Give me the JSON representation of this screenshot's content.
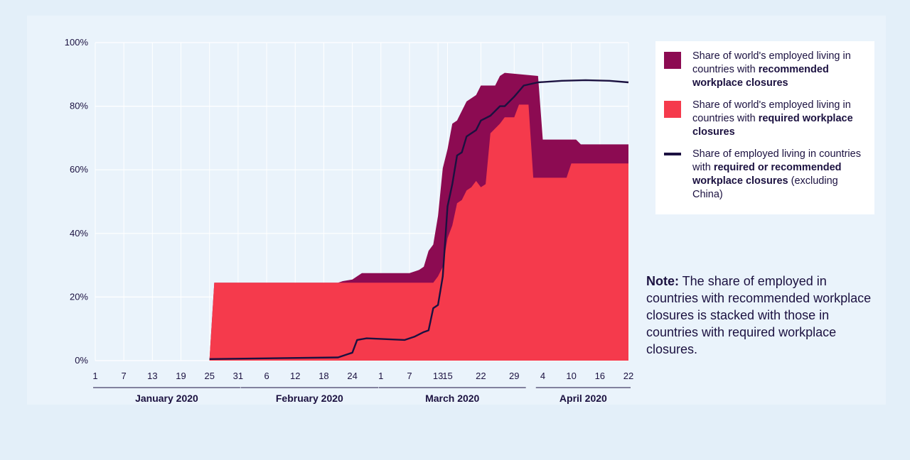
{
  "colors": {
    "page_background": "#e3eff9",
    "panel_background": "#eaf3fb",
    "recommended_closures": "#8c0b52",
    "required_closures": "#f53a4c",
    "combined_line": "#1b1140",
    "grid": "#ffffff"
  },
  "legend": {
    "recommended": {
      "text_plain": "Share of world's employed living in countries with ",
      "text_bold": "recommended workplace closures"
    },
    "required": {
      "text_plain": "Share of world's employed living in countries with ",
      "text_bold": "required workplace closures"
    },
    "combined": {
      "text_plain": "Share of employed living in countries with ",
      "text_bold": "required or recommended workplace closures",
      "text_suffix": " (excluding China)"
    }
  },
  "note": {
    "label": "Note:",
    "text": " The share of employed in countries with recommended workplace closures is stacked with those in countries with required workplace closures."
  },
  "chart_data": {
    "type": "area",
    "x_range": [
      "2020-01-01",
      "2020-04-22"
    ],
    "y_range": [
      0,
      100
    ],
    "y_unit": "%",
    "y_ticks": [
      0,
      20,
      40,
      60,
      80,
      100
    ],
    "y_tick_labels": [
      "0%",
      "20%",
      "40%",
      "60%",
      "80%",
      "100%"
    ],
    "x_ticks": [
      {
        "date": "2020-01-01",
        "label": "1"
      },
      {
        "date": "2020-01-07",
        "label": "7"
      },
      {
        "date": "2020-01-13",
        "label": "13"
      },
      {
        "date": "2020-01-19",
        "label": "19"
      },
      {
        "date": "2020-01-25",
        "label": "25"
      },
      {
        "date": "2020-01-31",
        "label": "31"
      },
      {
        "date": "2020-02-06",
        "label": "6"
      },
      {
        "date": "2020-02-12",
        "label": "12"
      },
      {
        "date": "2020-02-18",
        "label": "18"
      },
      {
        "date": "2020-02-24",
        "label": "24"
      },
      {
        "date": "2020-03-01",
        "label": "1"
      },
      {
        "date": "2020-03-07",
        "label": "7"
      },
      {
        "date": "2020-03-13",
        "label": "13"
      },
      {
        "date": "2020-03-15",
        "label": "15"
      },
      {
        "date": "2020-03-22",
        "label": "22"
      },
      {
        "date": "2020-03-29",
        "label": "29"
      },
      {
        "date": "2020-04-04",
        "label": "4"
      },
      {
        "date": "2020-04-10",
        "label": "10"
      },
      {
        "date": "2020-04-16",
        "label": "16"
      },
      {
        "date": "2020-04-22",
        "label": "22"
      }
    ],
    "months": [
      {
        "label": "January 2020",
        "start": "2020-01-01",
        "end": "2020-01-31"
      },
      {
        "label": "February 2020",
        "start": "2020-02-01",
        "end": "2020-02-29"
      },
      {
        "label": "March 2020",
        "start": "2020-03-01",
        "end": "2020-03-31"
      },
      {
        "label": "April 2020",
        "start": "2020-04-03",
        "end": "2020-04-22"
      }
    ],
    "grid": true,
    "legend_position": "right",
    "series": [
      {
        "key": "recommended",
        "kind": "stacked-area",
        "points": [
          [
            "2020-01-25",
            0.5
          ],
          [
            "2020-01-26",
            24.5
          ],
          [
            "2020-02-21",
            24.5
          ],
          [
            "2020-02-22",
            25
          ],
          [
            "2020-02-24",
            25.5
          ],
          [
            "2020-02-25",
            26.5
          ],
          [
            "2020-02-26",
            27.5
          ],
          [
            "2020-03-07",
            27.5
          ],
          [
            "2020-03-09",
            28.5
          ],
          [
            "2020-03-10",
            29.5
          ],
          [
            "2020-03-11",
            34.5
          ],
          [
            "2020-03-12",
            36.5
          ],
          [
            "2020-03-13",
            45.5
          ],
          [
            "2020-03-14",
            60.5
          ],
          [
            "2020-03-15",
            66.5
          ],
          [
            "2020-03-16",
            74.5
          ],
          [
            "2020-03-17",
            75.5
          ],
          [
            "2020-03-18",
            78.5
          ],
          [
            "2020-03-19",
            81.5
          ],
          [
            "2020-03-21",
            83.5
          ],
          [
            "2020-03-22",
            86.5
          ],
          [
            "2020-03-25",
            86.5
          ],
          [
            "2020-03-26",
            89.5
          ],
          [
            "2020-03-27",
            90.5
          ],
          [
            "2020-04-03",
            89.5
          ],
          [
            "2020-04-04",
            69.5
          ],
          [
            "2020-04-11",
            69.5
          ],
          [
            "2020-04-12",
            68.0
          ],
          [
            "2020-04-22",
            68.0
          ]
        ]
      },
      {
        "key": "required",
        "kind": "area",
        "points": [
          [
            "2020-01-25",
            0.5
          ],
          [
            "2020-01-26",
            24.5
          ],
          [
            "2020-03-12",
            24.5
          ],
          [
            "2020-03-13",
            26.5
          ],
          [
            "2020-03-14",
            29.5
          ],
          [
            "2020-03-15",
            38.5
          ],
          [
            "2020-03-16",
            42.5
          ],
          [
            "2020-03-17",
            49.5
          ],
          [
            "2020-03-18",
            50.5
          ],
          [
            "2020-03-19",
            53.5
          ],
          [
            "2020-03-20",
            54.5
          ],
          [
            "2020-03-21",
            56.5
          ],
          [
            "2020-03-22",
            54.5
          ],
          [
            "2020-03-23",
            55.5
          ],
          [
            "2020-03-24",
            71.5
          ],
          [
            "2020-03-26",
            74.5
          ],
          [
            "2020-03-27",
            76.5
          ],
          [
            "2020-03-29",
            76.5
          ],
          [
            "2020-03-30",
            80.5
          ],
          [
            "2020-04-01",
            80.5
          ],
          [
            "2020-04-02",
            57.5
          ],
          [
            "2020-04-09",
            57.5
          ],
          [
            "2020-04-10",
            62.0
          ],
          [
            "2020-04-22",
            62.0
          ]
        ]
      },
      {
        "key": "combined",
        "kind": "line",
        "points": [
          [
            "2020-01-25",
            0.5
          ],
          [
            "2020-02-21",
            1.0
          ],
          [
            "2020-02-23",
            2.0
          ],
          [
            "2020-02-24",
            2.5
          ],
          [
            "2020-02-25",
            6.5
          ],
          [
            "2020-02-27",
            7.0
          ],
          [
            "2020-03-06",
            6.5
          ],
          [
            "2020-03-08",
            7.5
          ],
          [
            "2020-03-10",
            9.0
          ],
          [
            "2020-03-11",
            9.5
          ],
          [
            "2020-03-12",
            16.5
          ],
          [
            "2020-03-13",
            17.5
          ],
          [
            "2020-03-14",
            26.5
          ],
          [
            "2020-03-15",
            48.5
          ],
          [
            "2020-03-16",
            55.5
          ],
          [
            "2020-03-17",
            64.5
          ],
          [
            "2020-03-18",
            65.5
          ],
          [
            "2020-03-19",
            70.5
          ],
          [
            "2020-03-21",
            72.5
          ],
          [
            "2020-03-22",
            75.5
          ],
          [
            "2020-03-24",
            77.0
          ],
          [
            "2020-03-26",
            80.0
          ],
          [
            "2020-03-27",
            80.0
          ],
          [
            "2020-03-29",
            83.0
          ],
          [
            "2020-03-31",
            86.5
          ],
          [
            "2020-04-03",
            87.5
          ],
          [
            "2020-04-08",
            88.0
          ],
          [
            "2020-04-13",
            88.2
          ],
          [
            "2020-04-18",
            88.0
          ],
          [
            "2020-04-22",
            87.5
          ]
        ]
      }
    ]
  }
}
